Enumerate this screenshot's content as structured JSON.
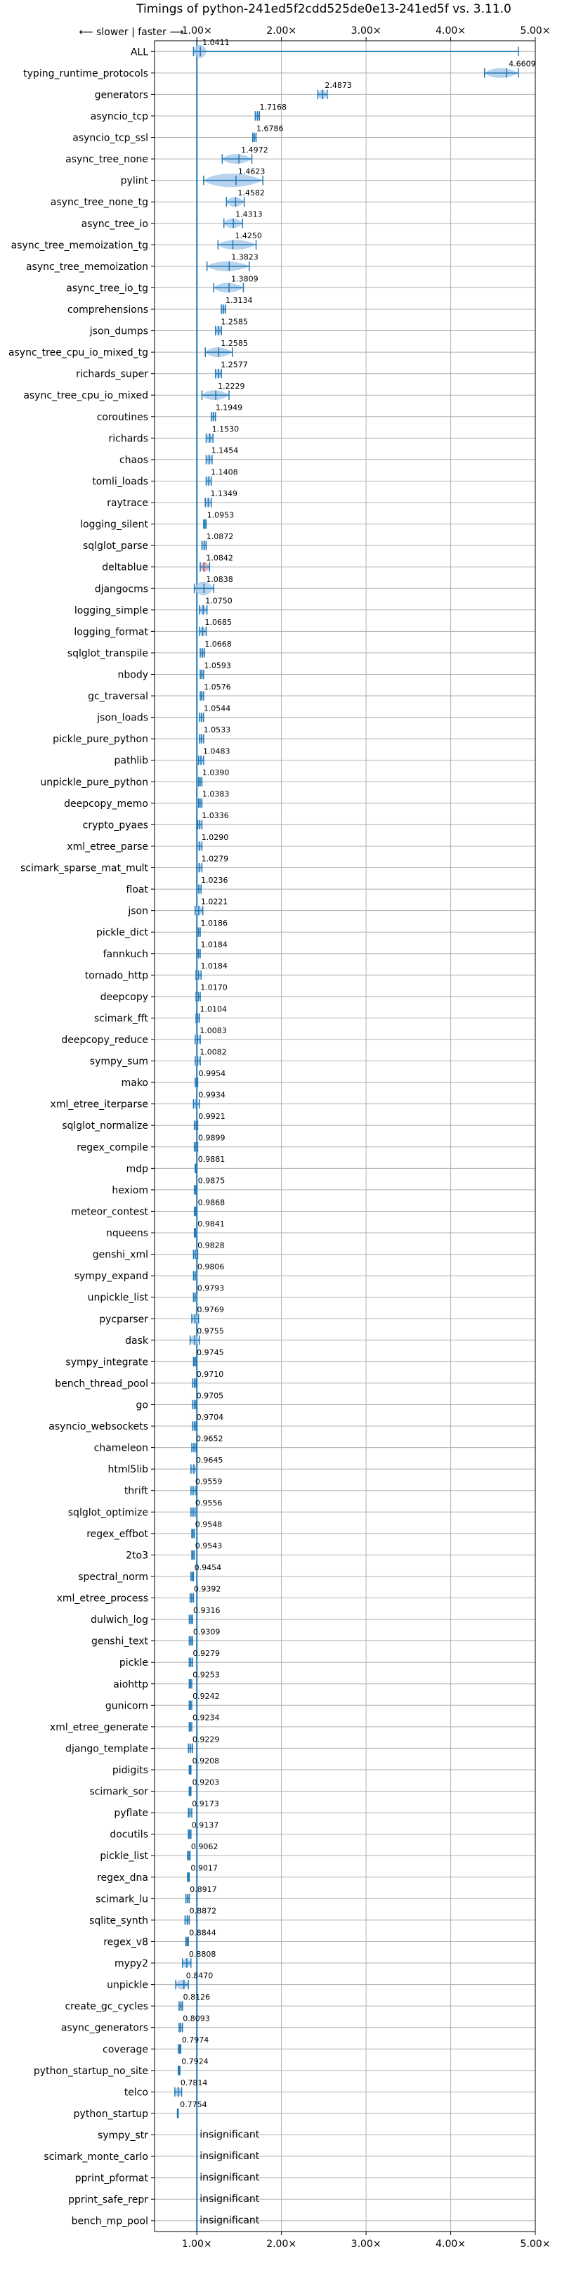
{
  "chart_data": {
    "type": "violin",
    "title": "Timings of python-241ed5f2cdd525de0e13-241ed5f vs. 3.11.0",
    "direction_label": "⟵ slower | faster ⟶",
    "insignificant_label": "insignificant",
    "xlim": [
      0.5,
      5.0
    ],
    "reference_x": 1.0,
    "x_ticks": [
      {
        "value": 1.0,
        "label": "1.00×"
      },
      {
        "value": 2.0,
        "label": "2.00×"
      },
      {
        "value": 3.0,
        "label": "3.00×"
      },
      {
        "value": 4.0,
        "label": "4.00×"
      },
      {
        "value": 5.0,
        "label": "5.00×"
      }
    ],
    "grid": true,
    "colors": {
      "violin": "#a6c8e8",
      "bar": "#1f77b4",
      "highlight": "#e8a0a8",
      "reference": "#1f77b4",
      "grid": "#b0b0b0"
    },
    "benchmarks": [
      {
        "name": "ALL",
        "value": 1.0411,
        "label": "1.0411",
        "lo": 0.96,
        "hi": 1.12,
        "whisker_hi": 4.8,
        "wide": true
      },
      {
        "name": "typing_runtime_protocols",
        "value": 4.6609,
        "label": "4.6609",
        "lo": 4.4,
        "hi": 4.8
      },
      {
        "name": "generators",
        "value": 2.4873,
        "label": "2.4873",
        "lo": 2.43,
        "hi": 2.54
      },
      {
        "name": "asyncio_tcp",
        "value": 1.7168,
        "label": "1.7168",
        "lo": 1.69,
        "hi": 1.74
      },
      {
        "name": "asyncio_tcp_ssl",
        "value": 1.6786,
        "label": "1.6786",
        "lo": 1.66,
        "hi": 1.7
      },
      {
        "name": "async_tree_none",
        "value": 1.4972,
        "label": "1.4972",
        "lo": 1.3,
        "hi": 1.65
      },
      {
        "name": "pylint",
        "value": 1.4623,
        "label": "1.4623",
        "lo": 1.08,
        "hi": 1.78,
        "wide": true
      },
      {
        "name": "async_tree_none_tg",
        "value": 1.4582,
        "label": "1.4582",
        "lo": 1.35,
        "hi": 1.56
      },
      {
        "name": "async_tree_io",
        "value": 1.4313,
        "label": "1.4313",
        "lo": 1.32,
        "hi": 1.54
      },
      {
        "name": "async_tree_memoization_tg",
        "value": 1.425,
        "label": "1.4250",
        "lo": 1.25,
        "hi": 1.7
      },
      {
        "name": "async_tree_memoization",
        "value": 1.3823,
        "label": "1.3823",
        "lo": 1.12,
        "hi": 1.62
      },
      {
        "name": "async_tree_io_tg",
        "value": 1.3809,
        "label": "1.3809",
        "lo": 1.2,
        "hi": 1.55
      },
      {
        "name": "comprehensions",
        "value": 1.3134,
        "label": "1.3134",
        "lo": 1.29,
        "hi": 1.34
      },
      {
        "name": "json_dumps",
        "value": 1.2585,
        "label": "1.2585",
        "lo": 1.22,
        "hi": 1.29
      },
      {
        "name": "async_tree_cpu_io_mixed_tg",
        "value": 1.2585,
        "label": "1.2585",
        "lo": 1.1,
        "hi": 1.42
      },
      {
        "name": "richards_super",
        "value": 1.2577,
        "label": "1.2577",
        "lo": 1.22,
        "hi": 1.29
      },
      {
        "name": "async_tree_cpu_io_mixed",
        "value": 1.2229,
        "label": "1.2229",
        "lo": 1.06,
        "hi": 1.38
      },
      {
        "name": "coroutines",
        "value": 1.1949,
        "label": "1.1949",
        "lo": 1.17,
        "hi": 1.22
      },
      {
        "name": "richards",
        "value": 1.153,
        "label": "1.1530",
        "lo": 1.11,
        "hi": 1.19
      },
      {
        "name": "chaos",
        "value": 1.1454,
        "label": "1.1454",
        "lo": 1.11,
        "hi": 1.18
      },
      {
        "name": "tomli_loads",
        "value": 1.1408,
        "label": "1.1408",
        "lo": 1.11,
        "hi": 1.17
      },
      {
        "name": "raytrace",
        "value": 1.1349,
        "label": "1.1349",
        "lo": 1.1,
        "hi": 1.17
      },
      {
        "name": "logging_silent",
        "value": 1.0953,
        "label": "1.0953",
        "lo": 1.08,
        "hi": 1.11
      },
      {
        "name": "sqlglot_parse",
        "value": 1.0872,
        "label": "1.0872",
        "lo": 1.06,
        "hi": 1.11
      },
      {
        "name": "deltablue",
        "value": 1.0842,
        "label": "1.0842",
        "lo": 1.04,
        "hi": 1.15,
        "highlight": true
      },
      {
        "name": "djangocms",
        "value": 1.0838,
        "label": "1.0838",
        "lo": 0.97,
        "hi": 1.2,
        "wide": true
      },
      {
        "name": "logging_simple",
        "value": 1.075,
        "label": "1.0750",
        "lo": 1.03,
        "hi": 1.12
      },
      {
        "name": "logging_format",
        "value": 1.0685,
        "label": "1.0685",
        "lo": 1.03,
        "hi": 1.11
      },
      {
        "name": "sqlglot_transpile",
        "value": 1.0668,
        "label": "1.0668",
        "lo": 1.04,
        "hi": 1.09
      },
      {
        "name": "nbody",
        "value": 1.0593,
        "label": "1.0593",
        "lo": 1.04,
        "hi": 1.08
      },
      {
        "name": "gc_traversal",
        "value": 1.0576,
        "label": "1.0576",
        "lo": 1.04,
        "hi": 1.08
      },
      {
        "name": "json_loads",
        "value": 1.0544,
        "label": "1.0544",
        "lo": 1.03,
        "hi": 1.08
      },
      {
        "name": "pickle_pure_python",
        "value": 1.0533,
        "label": "1.0533",
        "lo": 1.03,
        "hi": 1.08
      },
      {
        "name": "pathlib",
        "value": 1.0483,
        "label": "1.0483",
        "lo": 1.02,
        "hi": 1.08
      },
      {
        "name": "unpickle_pure_python",
        "value": 1.039,
        "label": "1.0390",
        "lo": 1.02,
        "hi": 1.06
      },
      {
        "name": "deepcopy_memo",
        "value": 1.0383,
        "label": "1.0383",
        "lo": 1.02,
        "hi": 1.06
      },
      {
        "name": "crypto_pyaes",
        "value": 1.0336,
        "label": "1.0336",
        "lo": 1.01,
        "hi": 1.06
      },
      {
        "name": "xml_etree_parse",
        "value": 1.029,
        "label": "1.0290",
        "lo": 1.0,
        "hi": 1.06
      },
      {
        "name": "scimark_sparse_mat_mult",
        "value": 1.0279,
        "label": "1.0279",
        "lo": 1.0,
        "hi": 1.06
      },
      {
        "name": "float",
        "value": 1.0236,
        "label": "1.0236",
        "lo": 1.0,
        "hi": 1.05
      },
      {
        "name": "json",
        "value": 1.0221,
        "label": "1.0221",
        "lo": 0.98,
        "hi": 1.07
      },
      {
        "name": "pickle_dict",
        "value": 1.0186,
        "label": "1.0186",
        "lo": 1.0,
        "hi": 1.04
      },
      {
        "name": "fannkuch",
        "value": 1.0184,
        "label": "1.0184",
        "lo": 1.0,
        "hi": 1.04
      },
      {
        "name": "tornado_http",
        "value": 1.0184,
        "label": "1.0184",
        "lo": 0.99,
        "hi": 1.05
      },
      {
        "name": "deepcopy",
        "value": 1.017,
        "label": "1.0170",
        "lo": 0.99,
        "hi": 1.04
      },
      {
        "name": "scimark_fft",
        "value": 1.0104,
        "label": "1.0104",
        "lo": 0.99,
        "hi": 1.03
      },
      {
        "name": "deepcopy_reduce",
        "value": 1.0083,
        "label": "1.0083",
        "lo": 0.98,
        "hi": 1.04
      },
      {
        "name": "sympy_sum",
        "value": 1.0082,
        "label": "1.0082",
        "lo": 0.98,
        "hi": 1.04
      },
      {
        "name": "mako",
        "value": 0.9954,
        "label": "0.9954",
        "lo": 0.98,
        "hi": 1.01
      },
      {
        "name": "xml_etree_iterparse",
        "value": 0.9934,
        "label": "0.9934",
        "lo": 0.96,
        "hi": 1.03
      },
      {
        "name": "sqlglot_normalize",
        "value": 0.9921,
        "label": "0.9921",
        "lo": 0.97,
        "hi": 1.01
      },
      {
        "name": "regex_compile",
        "value": 0.9899,
        "label": "0.9899",
        "lo": 0.97,
        "hi": 1.01
      },
      {
        "name": "mdp",
        "value": 0.9881,
        "label": "0.9881",
        "lo": 0.98,
        "hi": 1.0
      },
      {
        "name": "hexiom",
        "value": 0.9875,
        "label": "0.9875",
        "lo": 0.97,
        "hi": 1.0
      },
      {
        "name": "meteor_contest",
        "value": 0.9868,
        "label": "0.9868",
        "lo": 0.97,
        "hi": 1.0
      },
      {
        "name": "nqueens",
        "value": 0.9841,
        "label": "0.9841",
        "lo": 0.97,
        "hi": 1.0
      },
      {
        "name": "genshi_xml",
        "value": 0.9828,
        "label": "0.9828",
        "lo": 0.96,
        "hi": 1.01
      },
      {
        "name": "sympy_expand",
        "value": 0.9806,
        "label": "0.9806",
        "lo": 0.96,
        "hi": 1.0
      },
      {
        "name": "unpickle_list",
        "value": 0.9793,
        "label": "0.9793",
        "lo": 0.96,
        "hi": 1.0
      },
      {
        "name": "pycparser",
        "value": 0.9769,
        "label": "0.9769",
        "lo": 0.94,
        "hi": 1.02
      },
      {
        "name": "dask",
        "value": 0.9755,
        "label": "0.9755",
        "lo": 0.92,
        "hi": 1.03
      },
      {
        "name": "sympy_integrate",
        "value": 0.9745,
        "label": "0.9745",
        "lo": 0.96,
        "hi": 0.99
      },
      {
        "name": "bench_thread_pool",
        "value": 0.971,
        "label": "0.9710",
        "lo": 0.95,
        "hi": 0.99
      },
      {
        "name": "go",
        "value": 0.9705,
        "label": "0.9705",
        "lo": 0.95,
        "hi": 0.99
      },
      {
        "name": "asyncio_websockets",
        "value": 0.9704,
        "label": "0.9704",
        "lo": 0.95,
        "hi": 0.99
      },
      {
        "name": "chameleon",
        "value": 0.9652,
        "label": "0.9652",
        "lo": 0.94,
        "hi": 0.99
      },
      {
        "name": "html5lib",
        "value": 0.9645,
        "label": "0.9645",
        "lo": 0.93,
        "hi": 1.0
      },
      {
        "name": "thrift",
        "value": 0.9559,
        "label": "0.9559",
        "lo": 0.93,
        "hi": 0.99
      },
      {
        "name": "sqlglot_optimize",
        "value": 0.9556,
        "label": "0.9556",
        "lo": 0.93,
        "hi": 0.98
      },
      {
        "name": "regex_effbot",
        "value": 0.9548,
        "label": "0.9548",
        "lo": 0.94,
        "hi": 0.97
      },
      {
        "name": "2to3",
        "value": 0.9543,
        "label": "0.9543",
        "lo": 0.94,
        "hi": 0.97
      },
      {
        "name": "spectral_norm",
        "value": 0.9454,
        "label": "0.9454",
        "lo": 0.93,
        "hi": 0.96
      },
      {
        "name": "xml_etree_process",
        "value": 0.9392,
        "label": "0.9392",
        "lo": 0.92,
        "hi": 0.96
      },
      {
        "name": "dulwich_log",
        "value": 0.9316,
        "label": "0.9316",
        "lo": 0.91,
        "hi": 0.95
      },
      {
        "name": "genshi_text",
        "value": 0.9309,
        "label": "0.9309",
        "lo": 0.91,
        "hi": 0.95
      },
      {
        "name": "pickle",
        "value": 0.9279,
        "label": "0.9279",
        "lo": 0.91,
        "hi": 0.95
      },
      {
        "name": "aiohttp",
        "value": 0.9253,
        "label": "0.9253",
        "lo": 0.91,
        "hi": 0.94
      },
      {
        "name": "gunicorn",
        "value": 0.9242,
        "label": "0.9242",
        "lo": 0.91,
        "hi": 0.94
      },
      {
        "name": "xml_etree_generate",
        "value": 0.9234,
        "label": "0.9234",
        "lo": 0.91,
        "hi": 0.94
      },
      {
        "name": "django_template",
        "value": 0.9229,
        "label": "0.9229",
        "lo": 0.9,
        "hi": 0.95
      },
      {
        "name": "pidigits",
        "value": 0.9208,
        "label": "0.9208",
        "lo": 0.91,
        "hi": 0.93
      },
      {
        "name": "scimark_sor",
        "value": 0.9203,
        "label": "0.9203",
        "lo": 0.91,
        "hi": 0.93
      },
      {
        "name": "pyflate",
        "value": 0.9173,
        "label": "0.9173",
        "lo": 0.9,
        "hi": 0.94
      },
      {
        "name": "docutils",
        "value": 0.9137,
        "label": "0.9137",
        "lo": 0.9,
        "hi": 0.93
      },
      {
        "name": "pickle_list",
        "value": 0.9062,
        "label": "0.9062",
        "lo": 0.89,
        "hi": 0.92
      },
      {
        "name": "regex_dna",
        "value": 0.9017,
        "label": "0.9017",
        "lo": 0.89,
        "hi": 0.91
      },
      {
        "name": "scimark_lu",
        "value": 0.8917,
        "label": "0.8917",
        "lo": 0.87,
        "hi": 0.91
      },
      {
        "name": "sqlite_synth",
        "value": 0.8872,
        "label": "0.8872",
        "lo": 0.86,
        "hi": 0.91
      },
      {
        "name": "regex_v8",
        "value": 0.8844,
        "label": "0.8844",
        "lo": 0.87,
        "hi": 0.9
      },
      {
        "name": "mypy2",
        "value": 0.8808,
        "label": "0.8808",
        "lo": 0.83,
        "hi": 0.93
      },
      {
        "name": "unpickle",
        "value": 0.847,
        "label": "0.8470",
        "lo": 0.75,
        "hi": 0.9
      },
      {
        "name": "create_gc_cycles",
        "value": 0.8126,
        "label": "0.8126",
        "lo": 0.79,
        "hi": 0.83
      },
      {
        "name": "async_generators",
        "value": 0.8093,
        "label": "0.8093",
        "lo": 0.79,
        "hi": 0.83
      },
      {
        "name": "coverage",
        "value": 0.7974,
        "label": "0.7974",
        "lo": 0.78,
        "hi": 0.81
      },
      {
        "name": "python_startup_no_site",
        "value": 0.7924,
        "label": "0.7924",
        "lo": 0.78,
        "hi": 0.8
      },
      {
        "name": "telco",
        "value": 0.7814,
        "label": "0.7814",
        "lo": 0.74,
        "hi": 0.82
      },
      {
        "name": "python_startup",
        "value": 0.7754,
        "label": "0.7754",
        "lo": 0.77,
        "hi": 0.78
      },
      {
        "name": "sympy_str",
        "insignificant": true
      },
      {
        "name": "scimark_monte_carlo",
        "insignificant": true
      },
      {
        "name": "pprint_pformat",
        "insignificant": true
      },
      {
        "name": "pprint_safe_repr",
        "insignificant": true
      },
      {
        "name": "bench_mp_pool",
        "insignificant": true
      }
    ]
  }
}
